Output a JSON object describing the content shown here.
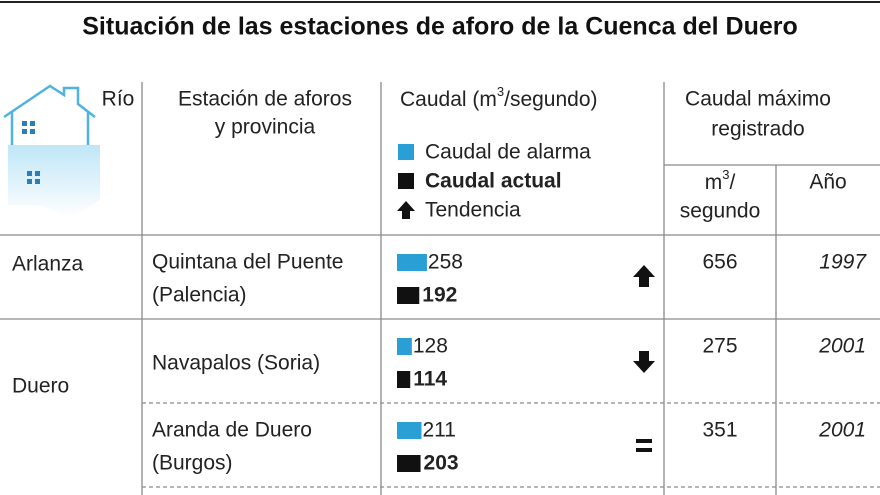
{
  "title": "Situación de las estaciones de aforo de la Cuenca del Duero",
  "header": {
    "river": "Río",
    "station": [
      "Estación de aforos",
      "y provincia"
    ],
    "flow": [
      "Caudal (m",
      "3",
      "/segundo)"
    ],
    "legend": [
      {
        "label": "Caudal de alarma",
        "color": "#2a9fd6"
      },
      {
        "label": "Caudal actual",
        "color": "#111111"
      },
      {
        "label": "Tendencia"
      }
    ],
    "max": [
      "Caudal máximo",
      "registrado"
    ],
    "unit": [
      "m",
      "3",
      "/",
      "segundo"
    ],
    "year": "Año"
  },
  "rivers": [
    {
      "name": "Arlanza",
      "stations": [
        {
          "name": [
            "Quintana del Puente",
            "(Palencia)"
          ],
          "alarm": 258,
          "current": 192,
          "trend": "up",
          "max": 656,
          "year": 1997
        }
      ]
    },
    {
      "name": "Duero",
      "stations": [
        {
          "name": [
            "Navapalos (Soria)"
          ],
          "alarm": 128,
          "current": 114,
          "trend": "down",
          "max": 275,
          "year": 2001
        },
        {
          "name": [
            "Aranda de Duero",
            "(Burgos)"
          ],
          "alarm": 211,
          "current": 203,
          "trend": "equal",
          "max": 351,
          "year": 2001
        }
      ]
    }
  ]
}
